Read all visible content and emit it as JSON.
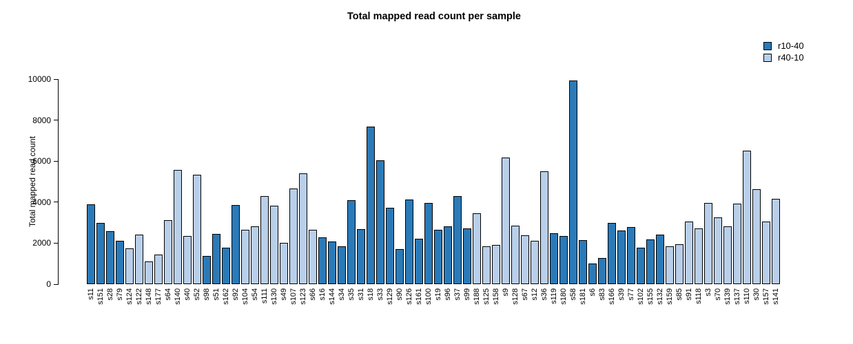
{
  "chart_data": {
    "type": "bar",
    "title": "Total mapped read count per sample",
    "xlabel": "",
    "ylabel": "Total mapped read count",
    "ylim": [
      0,
      10000
    ],
    "yticks": [
      0,
      2000,
      4000,
      6000,
      8000,
      10000
    ],
    "grid": false,
    "legend_position": "top-right",
    "series": [
      {
        "name": "r10-40",
        "color": "#2b7ab8"
      },
      {
        "name": "r40-10",
        "color": "#b9cfe9"
      }
    ],
    "samples": [
      {
        "label": "s11",
        "series": "r10-40",
        "value": 3890
      },
      {
        "label": "s151",
        "series": "r10-40",
        "value": 2990
      },
      {
        "label": "s28",
        "series": "r10-40",
        "value": 2570
      },
      {
        "label": "s79",
        "series": "r10-40",
        "value": 2130
      },
      {
        "label": "s124",
        "series": "r40-10",
        "value": 1730
      },
      {
        "label": "s122",
        "series": "r40-10",
        "value": 2420
      },
      {
        "label": "s148",
        "series": "r40-10",
        "value": 1110
      },
      {
        "label": "s177",
        "series": "r40-10",
        "value": 1450
      },
      {
        "label": "s64",
        "series": "r40-10",
        "value": 3130
      },
      {
        "label": "s140",
        "series": "r40-10",
        "value": 5580
      },
      {
        "label": "s40",
        "series": "r40-10",
        "value": 2360
      },
      {
        "label": "s52",
        "series": "r40-10",
        "value": 5350
      },
      {
        "label": "s98",
        "series": "r10-40",
        "value": 1370
      },
      {
        "label": "s51",
        "series": "r10-40",
        "value": 2450
      },
      {
        "label": "s162",
        "series": "r10-40",
        "value": 1780
      },
      {
        "label": "s92",
        "series": "r10-40",
        "value": 3850
      },
      {
        "label": "s104",
        "series": "r40-10",
        "value": 2650
      },
      {
        "label": "s54",
        "series": "r40-10",
        "value": 2820
      },
      {
        "label": "s111",
        "series": "r40-10",
        "value": 4280
      },
      {
        "label": "s130",
        "series": "r40-10",
        "value": 3830
      },
      {
        "label": "s49",
        "series": "r40-10",
        "value": 2010
      },
      {
        "label": "s107",
        "series": "r40-10",
        "value": 4680
      },
      {
        "label": "s123",
        "series": "r40-10",
        "value": 5400
      },
      {
        "label": "s66",
        "series": "r40-10",
        "value": 2650
      },
      {
        "label": "s16",
        "series": "r10-40",
        "value": 2290
      },
      {
        "label": "s144",
        "series": "r10-40",
        "value": 2090
      },
      {
        "label": "s34",
        "series": "r10-40",
        "value": 1850
      },
      {
        "label": "s35",
        "series": "r10-40",
        "value": 4080
      },
      {
        "label": "s31",
        "series": "r10-40",
        "value": 2700
      },
      {
        "label": "s18",
        "series": "r10-40",
        "value": 7670
      },
      {
        "label": "s33",
        "series": "r10-40",
        "value": 6040
      },
      {
        "label": "s129",
        "series": "r10-40",
        "value": 3730
      },
      {
        "label": "s90",
        "series": "r10-40",
        "value": 1700
      },
      {
        "label": "s126",
        "series": "r10-40",
        "value": 4130
      },
      {
        "label": "s161",
        "series": "r10-40",
        "value": 2230
      },
      {
        "label": "s100",
        "series": "r10-40",
        "value": 3970
      },
      {
        "label": "s19",
        "series": "r10-40",
        "value": 2640
      },
      {
        "label": "s96",
        "series": "r10-40",
        "value": 2820
      },
      {
        "label": "s37",
        "series": "r10-40",
        "value": 4280
      },
      {
        "label": "s99",
        "series": "r10-40",
        "value": 2730
      },
      {
        "label": "s188",
        "series": "r40-10",
        "value": 3470
      },
      {
        "label": "s125",
        "series": "r40-10",
        "value": 1850
      },
      {
        "label": "s158",
        "series": "r40-10",
        "value": 1920
      },
      {
        "label": "s9",
        "series": "r40-10",
        "value": 6170
      },
      {
        "label": "s128",
        "series": "r40-10",
        "value": 2850
      },
      {
        "label": "s67",
        "series": "r40-10",
        "value": 2380
      },
      {
        "label": "s12",
        "series": "r40-10",
        "value": 2100
      },
      {
        "label": "s36",
        "series": "r40-10",
        "value": 5520
      },
      {
        "label": "s119",
        "series": "r10-40",
        "value": 2490
      },
      {
        "label": "s180",
        "series": "r10-40",
        "value": 2340
      },
      {
        "label": "s58",
        "series": "r10-40",
        "value": 9930
      },
      {
        "label": "s181",
        "series": "r10-40",
        "value": 2150
      },
      {
        "label": "s6",
        "series": "r10-40",
        "value": 1000
      },
      {
        "label": "s83",
        "series": "r10-40",
        "value": 1260
      },
      {
        "label": "s166",
        "series": "r10-40",
        "value": 2970
      },
      {
        "label": "s39",
        "series": "r10-40",
        "value": 2610
      },
      {
        "label": "s77",
        "series": "r10-40",
        "value": 2800
      },
      {
        "label": "s102",
        "series": "r10-40",
        "value": 1770
      },
      {
        "label": "s155",
        "series": "r10-40",
        "value": 2190
      },
      {
        "label": "s132",
        "series": "r10-40",
        "value": 2400
      },
      {
        "label": "s159",
        "series": "r40-10",
        "value": 1850
      },
      {
        "label": "s85",
        "series": "r40-10",
        "value": 1940
      },
      {
        "label": "s91",
        "series": "r40-10",
        "value": 3050
      },
      {
        "label": "s118",
        "series": "r40-10",
        "value": 2720
      },
      {
        "label": "s3",
        "series": "r40-10",
        "value": 3950
      },
      {
        "label": "s70",
        "series": "r40-10",
        "value": 3260
      },
      {
        "label": "s139",
        "series": "r40-10",
        "value": 2830
      },
      {
        "label": "s137",
        "series": "r40-10",
        "value": 3920
      },
      {
        "label": "s110",
        "series": "r40-10",
        "value": 6510
      },
      {
        "label": "s30",
        "series": "r40-10",
        "value": 4620
      },
      {
        "label": "s157",
        "series": "r40-10",
        "value": 3050
      },
      {
        "label": "s141",
        "series": "r40-10",
        "value": 4170
      }
    ]
  }
}
